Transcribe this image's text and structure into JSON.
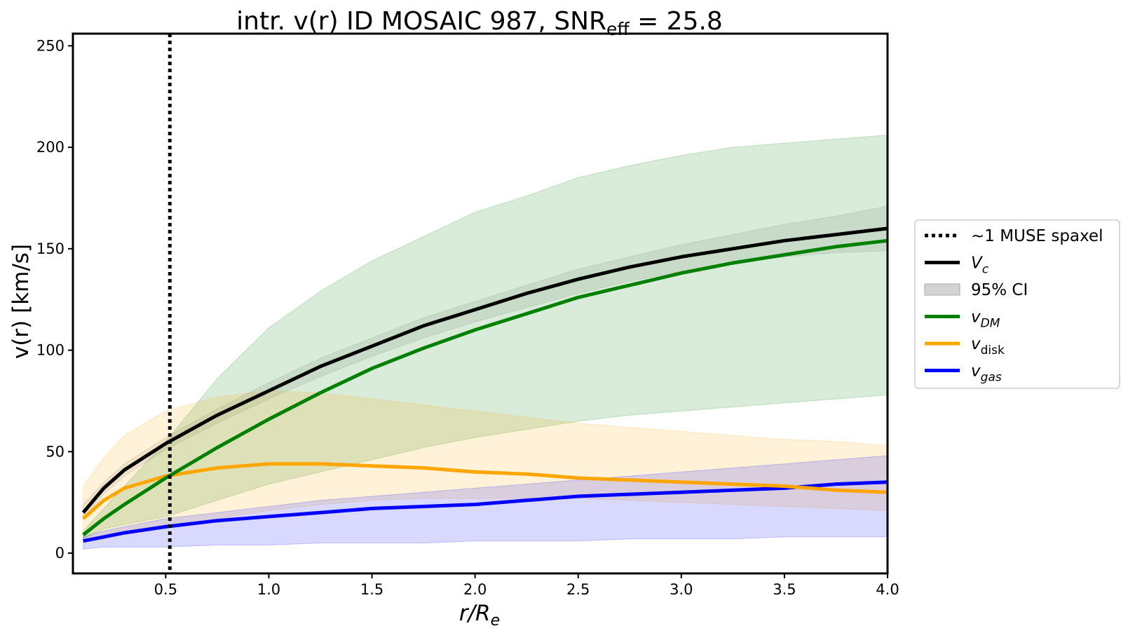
{
  "chart_data": {
    "type": "line",
    "title": {
      "text": "intr. v(r) ID MOSAIC 987, SNR",
      "subscript": "eff",
      "suffix": " = 25.8"
    },
    "xlabel": {
      "main": "r/R",
      "subscript": "e"
    },
    "ylabel": "v(r) [km/s]",
    "xlim": [
      0.05,
      4.0
    ],
    "ylim": [
      -10,
      256
    ],
    "xticks": [
      0.5,
      1.0,
      1.5,
      2.0,
      2.5,
      3.0,
      3.5,
      4.0
    ],
    "xtick_labels": [
      "0.5",
      "1.0",
      "1.5",
      "2.0",
      "2.5",
      "3.0",
      "3.5",
      "4.0"
    ],
    "yticks": [
      0,
      50,
      100,
      150,
      200,
      250
    ],
    "ytick_labels": [
      "0",
      "50",
      "100",
      "150",
      "200",
      "250"
    ],
    "grid": false,
    "legend_position": "outside right",
    "vline": {
      "x": 0.52,
      "style": "dotted",
      "color": "#000000"
    },
    "r": [
      0.1,
      0.2,
      0.3,
      0.5,
      0.75,
      1.0,
      1.25,
      1.5,
      1.75,
      2.0,
      2.25,
      2.5,
      2.75,
      3.0,
      3.25,
      3.5,
      3.75,
      4.0
    ],
    "series": [
      {
        "key": "vc",
        "color": "#000000",
        "values": [
          20,
          32,
          41,
          54,
          68,
          80,
          92,
          102,
          112,
          120,
          128,
          135,
          141,
          146,
          150,
          154,
          157,
          160
        ],
        "ci_lower": [
          17,
          29,
          38,
          51,
          64,
          76,
          87,
          97,
          106,
          114,
          121,
          128,
          134,
          139,
          143,
          146,
          148,
          149
        ],
        "ci_upper": [
          24,
          35,
          44,
          57,
          71,
          84,
          96,
          106,
          116,
          124,
          132,
          140,
          146,
          152,
          157,
          162,
          166,
          171
        ],
        "ci_color": "#808080"
      },
      {
        "key": "vdm",
        "color": "#008000",
        "values": [
          9,
          17,
          24,
          37,
          52,
          66,
          79,
          91,
          101,
          110,
          118,
          126,
          132,
          138,
          143,
          147,
          151,
          154
        ],
        "ci_lower": [
          7,
          12,
          14,
          18,
          26,
          34,
          40,
          46,
          52,
          57,
          61,
          65,
          68,
          70,
          72,
          74,
          76,
          78
        ],
        "ci_upper": [
          11,
          22,
          33,
          55,
          86,
          111,
          129,
          144,
          156,
          168,
          176,
          185,
          191,
          196,
          200,
          202,
          204,
          206
        ],
        "ci_color": "#008000"
      },
      {
        "key": "vdisk",
        "color": "#ffa500",
        "values": [
          17,
          26,
          32,
          38,
          42,
          44,
          44,
          43,
          42,
          40,
          39,
          37,
          36,
          35,
          34,
          33,
          31,
          30
        ],
        "ci_lower": [
          6,
          8,
          10,
          13,
          17,
          21,
          24,
          26,
          27,
          27,
          27,
          27,
          26,
          25,
          24,
          23,
          22,
          21
        ],
        "ci_upper": [
          33,
          47,
          58,
          70,
          77,
          80,
          79,
          76,
          73,
          70,
          67,
          64,
          62,
          60,
          58,
          56,
          55,
          53
        ],
        "ci_color": "#ffa500"
      },
      {
        "key": "vgas",
        "color": "#0000ff",
        "values": [
          6,
          8,
          10,
          13,
          16,
          18,
          20,
          22,
          23,
          24,
          26,
          28,
          29,
          30,
          31,
          32,
          34,
          35
        ],
        "ci_lower": [
          2,
          3,
          3,
          3,
          4,
          4,
          5,
          5,
          5,
          6,
          6,
          6,
          7,
          7,
          7,
          8,
          8,
          8
        ],
        "ci_upper": [
          8,
          11,
          13,
          17,
          20,
          23,
          26,
          28,
          30,
          32,
          34,
          36,
          38,
          40,
          42,
          44,
          46,
          48
        ],
        "ci_color": "#0000ff"
      }
    ],
    "legend": [
      {
        "kind": "dotted",
        "color": "#000000",
        "text": "~1 MUSE spaxel",
        "sub": ""
      },
      {
        "kind": "line",
        "color": "#000000",
        "text": "V",
        "sub": "c"
      },
      {
        "kind": "patch",
        "color": "#d3d3d3",
        "text": "95% CI",
        "sub": ""
      },
      {
        "kind": "line",
        "color": "#008000",
        "text": "v",
        "sub": "DM"
      },
      {
        "kind": "line",
        "color": "#ffa500",
        "text": "v",
        "sub": "disk"
      },
      {
        "kind": "line",
        "color": "#0000ff",
        "text": "v",
        "sub": "gas"
      }
    ]
  }
}
